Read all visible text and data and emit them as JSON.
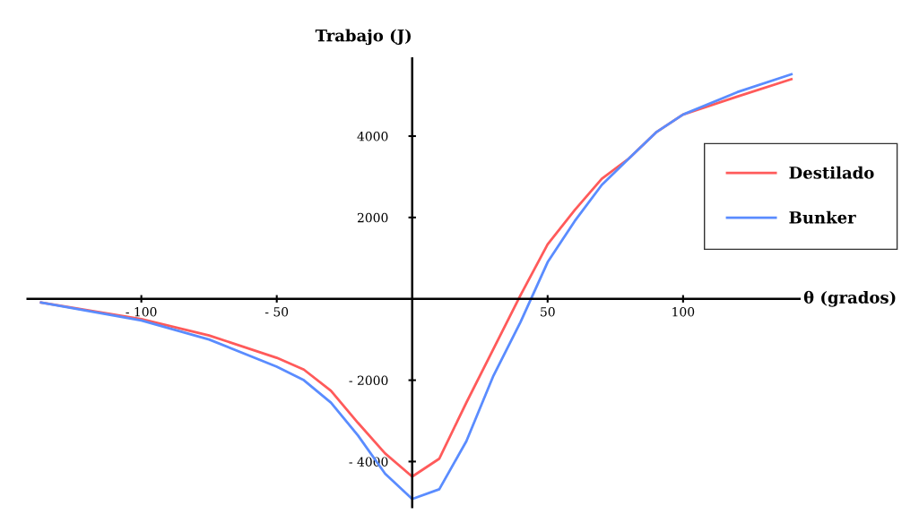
{
  "chart_data": {
    "type": "line",
    "xlabel": "θ (grados)",
    "ylabel": "Trabajo (J)",
    "xlim": [
      -142,
      143
    ],
    "ylim": [
      -5120,
      5910
    ],
    "xticks": [
      -100,
      -50,
      50,
      100
    ],
    "yticks": [
      -4000,
      -2000,
      2000,
      4000
    ],
    "grid": false,
    "legend": "right",
    "line_style": "solid",
    "marker": "none",
    "series": [
      {
        "name": "Destilado",
        "color": "#ff5a5a",
        "x": [
          -137,
          -100,
          -75,
          -50,
          -40,
          -30,
          -20,
          -10,
          0,
          10,
          20,
          30,
          40,
          50,
          60,
          70,
          80,
          90,
          100,
          120,
          140
        ],
        "values": [
          -90,
          -500,
          -900,
          -1450,
          -1740,
          -2260,
          -3050,
          -3800,
          -4370,
          -3930,
          -2550,
          -1230,
          90,
          1340,
          2180,
          2950,
          3450,
          4090,
          4530,
          4970,
          5400
        ]
      },
      {
        "name": "Bunker",
        "color": "#5a8cff",
        "x": [
          -137,
          -100,
          -75,
          -50,
          -40,
          -30,
          -20,
          -10,
          0,
          10,
          20,
          30,
          40,
          50,
          60,
          70,
          80,
          90,
          100,
          120,
          140
        ],
        "values": [
          -90,
          -530,
          -1000,
          -1670,
          -2000,
          -2550,
          -3360,
          -4300,
          -4920,
          -4680,
          -3500,
          -1890,
          -570,
          900,
          1910,
          2800,
          3450,
          4090,
          4530,
          5080,
          5520
        ]
      }
    ]
  }
}
